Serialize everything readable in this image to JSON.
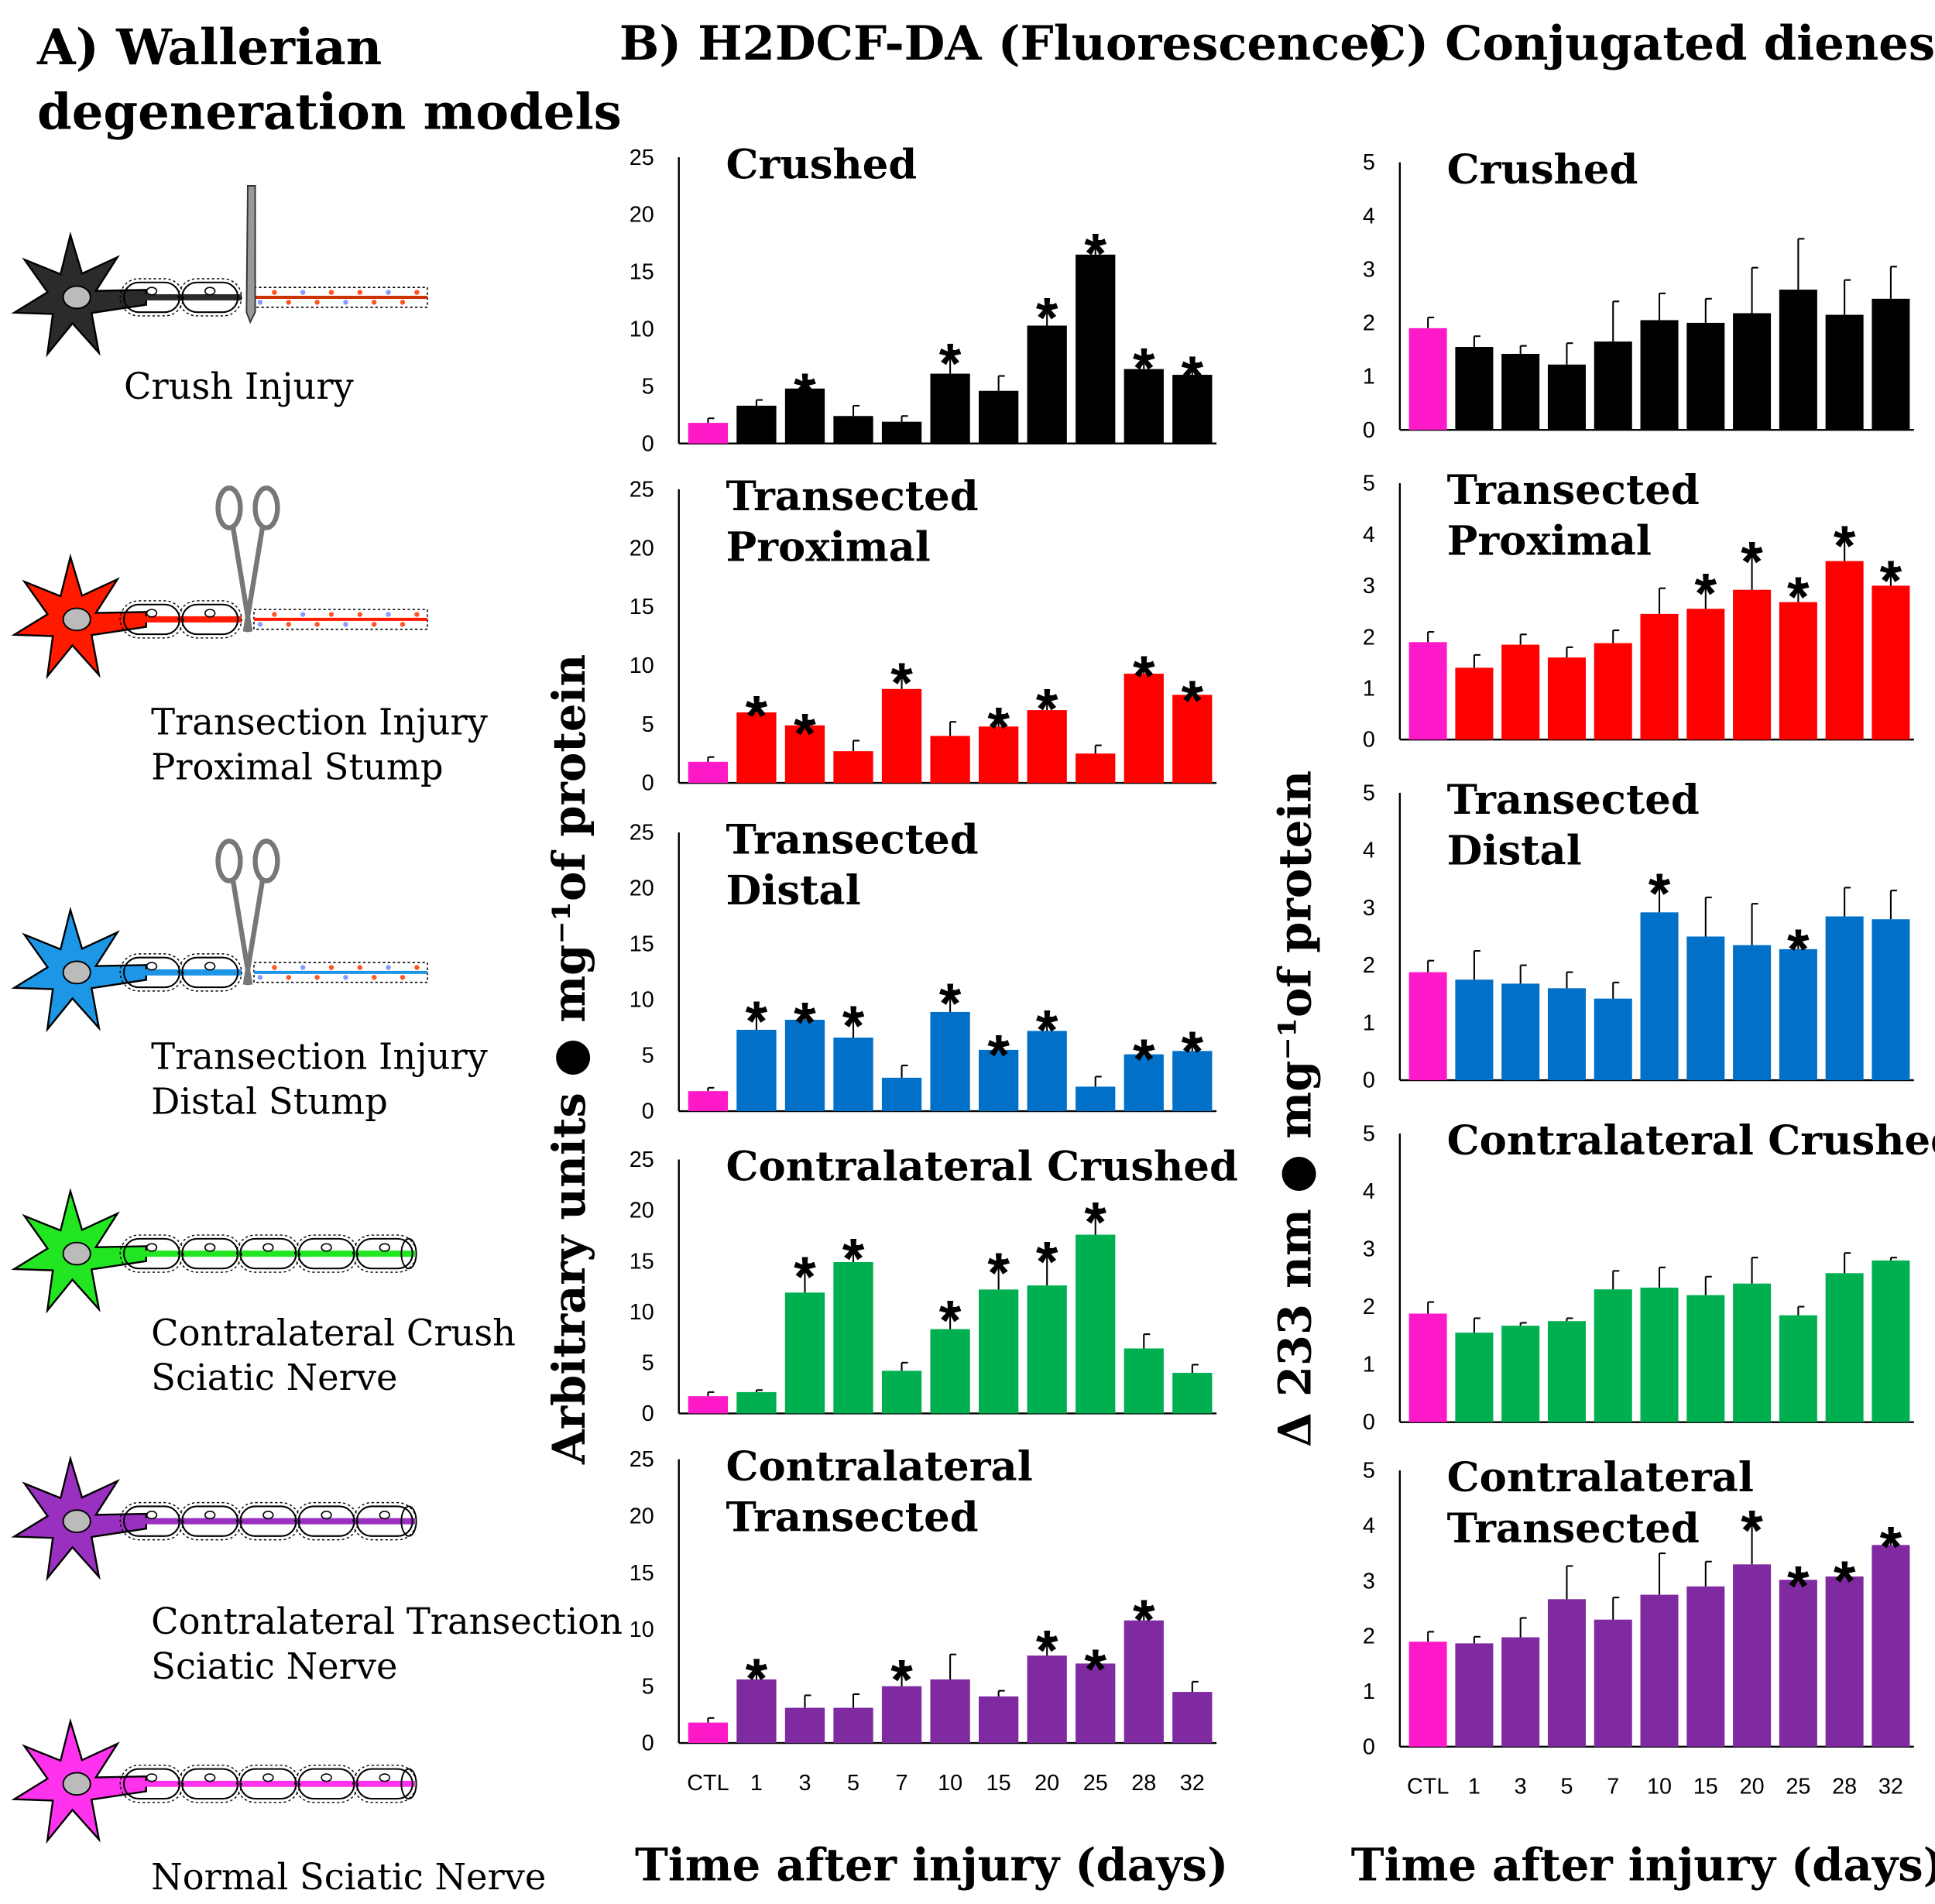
{
  "panels": {
    "a": {
      "title": [
        "A)  Wallerian",
        "degeneration models"
      ],
      "labels": [
        [
          "Crush Injury"
        ],
        [
          "Transection Injury",
          "Proximal Stump"
        ],
        [
          "Transection Injury",
          "Distal Stump"
        ],
        [
          "Contralateral Crush",
          "Sciatic Nerve"
        ],
        [
          "Contralateral Transection",
          "Sciatic Nerve"
        ],
        [
          "Normal Sciatic Nerve"
        ]
      ]
    },
    "b": {
      "title": "B) H2DCF-DA (Fluorescence)",
      "ylabel": "Arbitrary units ● mg⁻¹of protein",
      "xlabel": "Time after injury (days)"
    },
    "c": {
      "title": "C) Conjugated dienes",
      "ylabel": "Δ 233 nm ● mg⁻¹of protein",
      "xlabel": "Time after injury (days)"
    }
  },
  "chart_data": [
    {
      "type": "bar",
      "title": [
        "Crushed"
      ],
      "color": "#000000",
      "control_color": "#ff19c8",
      "ylim": [
        0,
        25
      ],
      "yticks": [
        0,
        5,
        10,
        15,
        20,
        25
      ],
      "values": [
        1.8,
        3.3,
        4.8,
        2.4,
        1.9,
        6.1,
        4.6,
        10.3,
        16.5,
        6.5,
        6.0
      ],
      "errors": [
        0.4,
        0.5,
        0.7,
        0.9,
        0.5,
        2.0,
        1.3,
        1.8,
        1.2,
        1.2,
        1.0
      ],
      "stars": [
        null,
        null,
        "*",
        null,
        null,
        "*",
        null,
        "*",
        "*",
        "*",
        "*"
      ]
    },
    {
      "type": "bar",
      "title": [
        "Transected",
        "Proximal"
      ],
      "color": "#ff0000",
      "control_color": "#ff19c8",
      "ylim": [
        0,
        25
      ],
      "yticks": [
        0,
        5,
        10,
        15,
        20,
        25
      ],
      "values": [
        1.8,
        6.0,
        4.9,
        2.7,
        8.0,
        4.0,
        4.8,
        6.2,
        2.5,
        9.3,
        7.5
      ],
      "errors": [
        0.4,
        0.8,
        0.4,
        0.9,
        1.6,
        1.2,
        1.0,
        1.2,
        0.7,
        0.9,
        0.6
      ],
      "stars": [
        null,
        "*",
        "*",
        null,
        "*",
        null,
        "*",
        "*",
        null,
        "*",
        "*"
      ]
    },
    {
      "type": "bar",
      "title": [
        "Transected",
        "Distal"
      ],
      "color": "#0070c8",
      "control_color": "#ff19c8",
      "ylim": [
        0,
        25
      ],
      "yticks": [
        0,
        5,
        10,
        15,
        20,
        25
      ],
      "values": [
        1.8,
        7.3,
        8.2,
        6.6,
        3.0,
        8.9,
        5.5,
        7.2,
        2.2,
        5.1,
        5.4
      ],
      "errors": [
        0.3,
        1.9,
        0.9,
        2.2,
        1.1,
        1.9,
        0.7,
        1.2,
        0.9,
        0.7,
        1.1
      ],
      "stars": [
        null,
        "*",
        "*",
        "*",
        null,
        "*",
        "*",
        "*",
        null,
        "*",
        "*"
      ]
    },
    {
      "type": "bar",
      "title": [
        "Contralateral Crushed"
      ],
      "color": "#00b050",
      "control_color": "#ff19c8",
      "ylim": [
        0,
        25
      ],
      "yticks": [
        0,
        5,
        10,
        15,
        20,
        25
      ],
      "values": [
        1.7,
        2.1,
        11.9,
        14.9,
        4.2,
        8.3,
        12.2,
        12.6,
        17.6,
        6.4,
        4.0
      ],
      "errors": [
        0.4,
        0.2,
        2.8,
        1.6,
        0.8,
        2.1,
        2.9,
        3.6,
        2.5,
        1.4,
        0.8
      ],
      "stars": [
        null,
        null,
        "*",
        "*",
        null,
        "*",
        "*",
        "*",
        "*",
        null,
        null
      ]
    },
    {
      "type": "bar",
      "title": [
        "Contralateral",
        "Transected"
      ],
      "color": "#7f2aa0",
      "control_color": "#ff19c8",
      "ylim": [
        0,
        25
      ],
      "yticks": [
        0,
        5,
        10,
        15,
        20,
        25
      ],
      "categories": [
        "CTL",
        "1",
        "3",
        "5",
        "7",
        "10",
        "15",
        "20",
        "25",
        "28",
        "32"
      ],
      "values": [
        1.8,
        5.6,
        3.1,
        3.1,
        5.0,
        5.6,
        4.1,
        7.7,
        7.0,
        10.8,
        4.5
      ],
      "errors": [
        0.4,
        1.2,
        1.1,
        1.2,
        1.7,
        2.2,
        0.5,
        1.6,
        0.6,
        1.2,
        0.9
      ],
      "stars": [
        null,
        "*",
        null,
        null,
        "*",
        null,
        null,
        "*",
        "*",
        "*",
        null
      ]
    },
    {
      "type": "bar",
      "title": [
        "Crushed"
      ],
      "color": "#000000",
      "control_color": "#ff19c8",
      "ylim": [
        0,
        5
      ],
      "yticks": [
        0,
        1,
        2,
        3,
        4,
        5
      ],
      "values": [
        1.9,
        1.55,
        1.42,
        1.22,
        1.65,
        2.05,
        2.0,
        2.18,
        2.62,
        2.15,
        2.45
      ],
      "errors": [
        0.2,
        0.2,
        0.15,
        0.4,
        0.75,
        0.5,
        0.45,
        0.85,
        0.95,
        0.65,
        0.6
      ],
      "stars": [
        null,
        null,
        null,
        null,
        null,
        null,
        null,
        null,
        null,
        null,
        null
      ]
    },
    {
      "type": "bar",
      "title": [
        "Transected",
        "Proximal"
      ],
      "color": "#ff0000",
      "control_color": "#ff19c8",
      "ylim": [
        0,
        5
      ],
      "yticks": [
        0,
        1,
        2,
        3,
        4,
        5
      ],
      "values": [
        1.9,
        1.4,
        1.85,
        1.6,
        1.88,
        2.45,
        2.55,
        2.92,
        2.68,
        3.48,
        3.0
      ],
      "errors": [
        0.2,
        0.25,
        0.2,
        0.2,
        0.25,
        0.5,
        0.55,
        0.8,
        0.35,
        0.55,
        0.35
      ],
      "stars": [
        null,
        null,
        null,
        null,
        null,
        null,
        "*",
        "*",
        "*",
        "*",
        "*"
      ]
    },
    {
      "type": "bar",
      "title": [
        "Transected",
        "Distal"
      ],
      "color": "#0070c8",
      "control_color": "#ff19c8",
      "ylim": [
        0,
        5
      ],
      "yticks": [
        0,
        1,
        2,
        3,
        4,
        5
      ],
      "values": [
        1.88,
        1.75,
        1.68,
        1.6,
        1.42,
        2.92,
        2.5,
        2.35,
        2.28,
        2.85,
        2.8
      ],
      "errors": [
        0.2,
        0.5,
        0.32,
        0.28,
        0.28,
        0.55,
        0.68,
        0.72,
        0.22,
        0.5,
        0.5
      ],
      "stars": [
        null,
        null,
        null,
        null,
        null,
        "*",
        null,
        null,
        "*",
        null,
        null
      ]
    },
    {
      "type": "bar",
      "title": [
        "Contralateral Crushed"
      ],
      "color": "#00b050",
      "control_color": "#ff19c8",
      "ylim": [
        0,
        5
      ],
      "yticks": [
        0,
        1,
        2,
        3,
        4,
        5
      ],
      "values": [
        1.88,
        1.55,
        1.67,
        1.75,
        2.3,
        2.33,
        2.2,
        2.4,
        1.85,
        2.58,
        2.8
      ],
      "errors": [
        0.2,
        0.25,
        0.05,
        0.05,
        0.32,
        0.35,
        0.32,
        0.45,
        0.15,
        0.35,
        0.05
      ],
      "stars": [
        null,
        null,
        null,
        null,
        null,
        null,
        null,
        null,
        null,
        null,
        null
      ]
    },
    {
      "type": "bar",
      "title": [
        "Contralateral",
        "Transected"
      ],
      "color": "#7f2aa0",
      "control_color": "#ff19c8",
      "ylim": [
        0,
        5
      ],
      "yticks": [
        0,
        1,
        2,
        3,
        4,
        5
      ],
      "categories": [
        "CTL",
        "1",
        "3",
        "5",
        "7",
        "10",
        "15",
        "20",
        "25",
        "28",
        "32"
      ],
      "values": [
        1.9,
        1.87,
        1.98,
        2.67,
        2.3,
        2.75,
        2.9,
        3.3,
        3.02,
        3.08,
        3.65
      ],
      "errors": [
        0.18,
        0.12,
        0.35,
        0.6,
        0.4,
        0.75,
        0.45,
        0.85,
        0.12,
        0.15,
        0.2
      ],
      "stars": [
        null,
        null,
        null,
        null,
        null,
        null,
        null,
        "*",
        "*",
        "*",
        "*"
      ]
    }
  ]
}
